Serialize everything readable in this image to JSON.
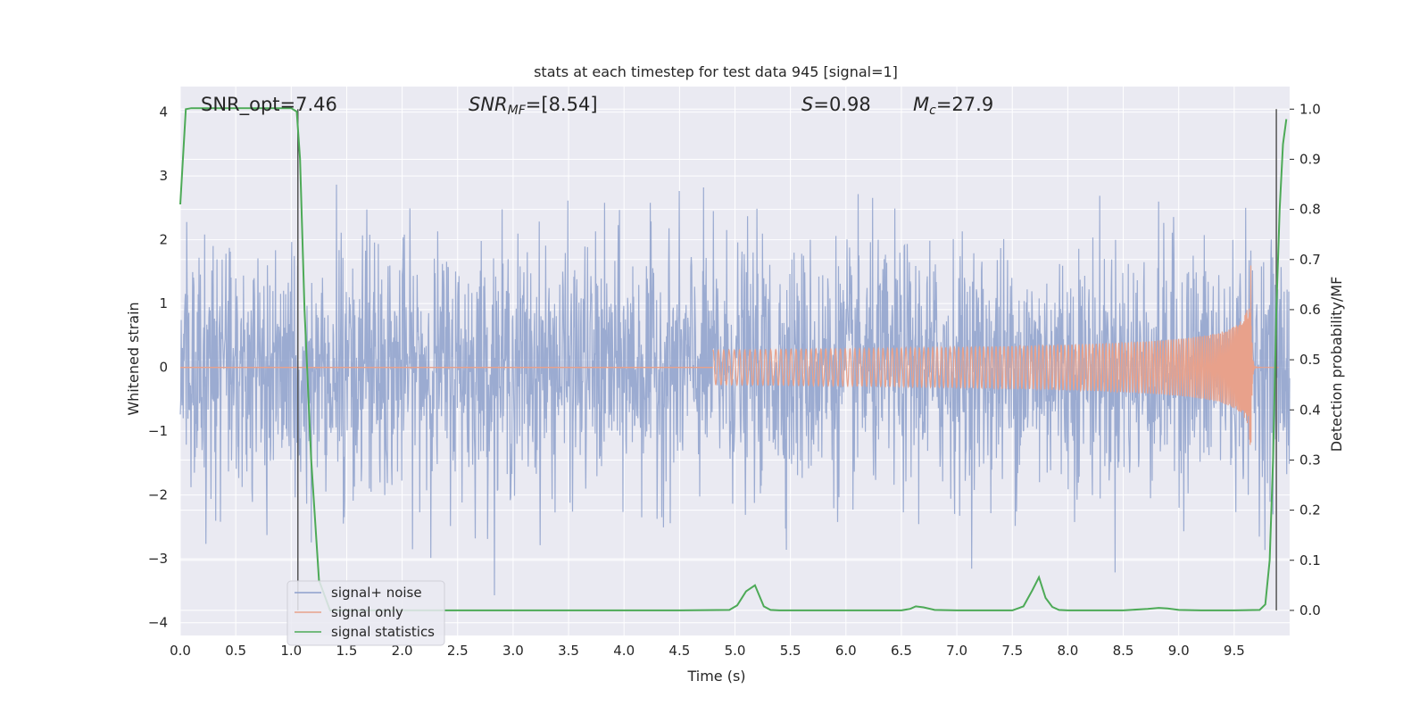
{
  "chart_data": {
    "type": "line",
    "title": "stats at each timestep for test data 945 [signal=1]",
    "xlabel": "Time (s)",
    "ylabel": "Whitened strain",
    "y2label": "Detection probability/MF",
    "xlim": [
      0,
      10
    ],
    "ylim": [
      -4.2,
      4.4
    ],
    "y2lim": [
      -0.05,
      1.045
    ],
    "xticks": [
      "0.0",
      "0.5",
      "1.0",
      "1.5",
      "2.0",
      "2.5",
      "3.0",
      "3.5",
      "4.0",
      "4.5",
      "5.0",
      "5.5",
      "6.0",
      "6.5",
      "7.0",
      "7.5",
      "8.0",
      "8.5",
      "9.0",
      "9.5"
    ],
    "yticks": [
      "4",
      "3",
      "2",
      "1",
      "0",
      "−1",
      "−2",
      "−3",
      "−4"
    ],
    "y2ticks": [
      "1.0",
      "0.9",
      "0.8",
      "0.7",
      "0.6",
      "0.5",
      "0.4",
      "0.3",
      "0.2",
      "0.1",
      "0.0"
    ],
    "grid": true,
    "legend_position": "lower-left",
    "annotations": {
      "snr_opt": "SNR_opt=7.46",
      "snr_mf_main": "SNR",
      "snr_mf_sub": "MF",
      "snr_mf_value": "=[8.54]",
      "s_symbol": "S",
      "s_value": "=0.98",
      "mc_main": "M",
      "mc_sub": "c",
      "mc_value": "=27.9"
    },
    "series": [
      {
        "name": "signal+ noise",
        "color": "#8da0cb",
        "style": "dense noise, amplitude approx ±1.7 with spikes to ±4",
        "x_range": [
          0,
          10
        ]
      },
      {
        "name": "signal only",
        "color": "#e8a18b",
        "style": "chirp growing to merger",
        "merger_time": 9.65,
        "peak_amplitude": 1.6
      },
      {
        "name": "signal statistics",
        "color": "#4daa57",
        "axis": "right",
        "x": [
          0.0,
          0.05,
          0.1,
          0.3,
          0.6,
          0.9,
          1.0,
          1.05,
          1.08,
          1.12,
          1.18,
          1.25,
          1.35,
          1.5,
          2.0,
          3.0,
          4.0,
          4.5,
          4.95,
          5.02,
          5.1,
          5.18,
          5.26,
          5.32,
          5.4,
          6.0,
          6.5,
          6.58,
          6.63,
          6.7,
          6.8,
          7.0,
          7.5,
          7.6,
          7.68,
          7.74,
          7.8,
          7.86,
          7.92,
          8.0,
          8.5,
          8.72,
          8.82,
          8.9,
          9.0,
          9.2,
          9.5,
          9.73,
          9.78,
          9.82,
          9.85,
          9.88,
          9.91,
          9.94,
          9.97
        ],
        "values": [
          0.81,
          1.0,
          1.002,
          1.002,
          1.002,
          1.002,
          1.002,
          0.995,
          0.9,
          0.6,
          0.3,
          0.06,
          0.0,
          0.0,
          0.0,
          0.0,
          0.0,
          0.0,
          0.001,
          0.01,
          0.038,
          0.05,
          0.008,
          0.001,
          0.0,
          0.0,
          0.0,
          0.003,
          0.008,
          0.006,
          0.001,
          0.0,
          0.0,
          0.008,
          0.04,
          0.066,
          0.025,
          0.007,
          0.001,
          0.0,
          0.0,
          0.003,
          0.005,
          0.004,
          0.001,
          0.0,
          0.0,
          0.001,
          0.012,
          0.1,
          0.3,
          0.6,
          0.8,
          0.93,
          0.98
        ]
      }
    ],
    "vertical_lines": [
      1.06,
      9.88
    ],
    "colors": {
      "axes_bg": "#eaeaf2",
      "grid": "#ffffff",
      "noise": "#8da0cb",
      "signal": "#e8a18b",
      "stat": "#4daa57",
      "vline": "#555555"
    }
  }
}
